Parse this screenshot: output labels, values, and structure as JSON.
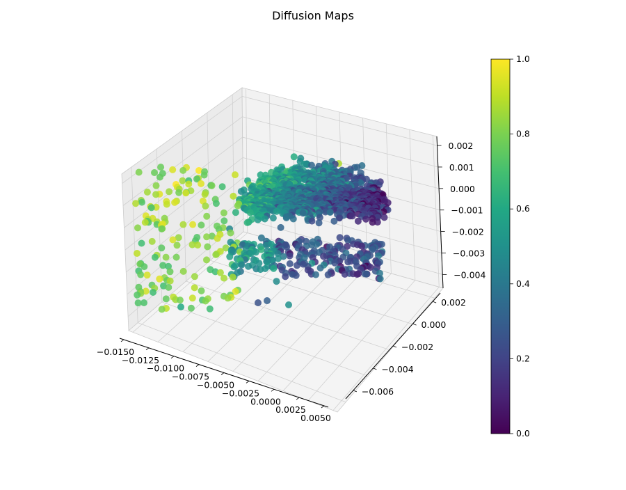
{
  "chart_data": {
    "type": "scatter",
    "title": "Diffusion Maps",
    "xlabel": "",
    "ylabel": "",
    "zlabel": "",
    "xlim": [
      -0.016,
      0.0055
    ],
    "ylim": [
      -0.0065,
      0.0028
    ],
    "zlim": [
      -0.0045,
      0.0027
    ],
    "grid": true,
    "colormap": "viridis",
    "colorbar": {
      "min": 0.0,
      "max": 1.0,
      "ticks": [
        "0.0",
        "0.2",
        "0.4",
        "0.6",
        "0.8",
        "1.0"
      ]
    },
    "x_ticks": [
      "−0.0150",
      "−0.0125",
      "−0.0100",
      "−0.0075",
      "−0.0050",
      "−0.0025",
      "0.0000",
      "0.0025",
      "0.0050"
    ],
    "y_ticks": [
      "−0.006",
      "−0.004",
      "−0.002",
      "0.000",
      "0.002"
    ],
    "z_ticks": [
      "−0.004",
      "−0.003",
      "−0.002",
      "−0.001",
      "0.000",
      "0.001",
      "0.002"
    ],
    "point_count": 1500,
    "colors": {
      "pane": "#f2f2f2",
      "pane_side": "#ebebeb",
      "pane_floor": "#f4f4f4",
      "grid": "#d0d0d0"
    }
  }
}
